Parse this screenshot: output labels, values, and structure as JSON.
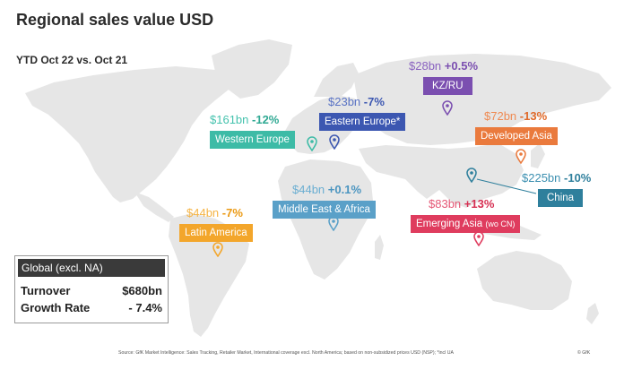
{
  "title": "Regional sales value USD",
  "subtitle": "YTD Oct 22 vs. Oct 21",
  "regions": [
    {
      "name": "KZ/RU",
      "value": "$28bn",
      "change": "+0.5%",
      "color": "#7b4fb0"
    },
    {
      "name": "Eastern Europe*",
      "value": "$23bn",
      "change": "-7%",
      "color": "#3c57b1"
    },
    {
      "name": "Western Europe",
      "value": "$161bn",
      "change": "-12%",
      "color": "#3dbba6"
    },
    {
      "name": "Developed Asia",
      "value": "$72bn",
      "change": "-13%",
      "color": "#ea7a3d"
    },
    {
      "name": "China",
      "value": "$225bn",
      "change": "-10%",
      "color": "#2e7f9c"
    },
    {
      "name": "Middle East & Africa",
      "value": "$44bn",
      "change": "+0.1%",
      "color": "#5aa0c8"
    },
    {
      "name": "Emerging Asia",
      "name_suffix": "(wo CN)",
      "value": "$83bn",
      "change": "+13%",
      "color": "#df3c5e"
    },
    {
      "name": "Latin America",
      "value": "$44bn",
      "change": "-7%",
      "color": "#f3a62b"
    }
  ],
  "global": {
    "header": "Global (excl. NA)",
    "turnover_label": "Turnover",
    "turnover_value": "$680bn",
    "growth_label": "Growth Rate",
    "growth_value": "- 7.4%"
  },
  "footer": {
    "source": "Source: GfK Market Intelligence: Sales Tracking, Retailer Market, International coverage excl. North America; based on non-subsidized prices USD (NSP); *incl UA",
    "copyright": "© GfK"
  }
}
